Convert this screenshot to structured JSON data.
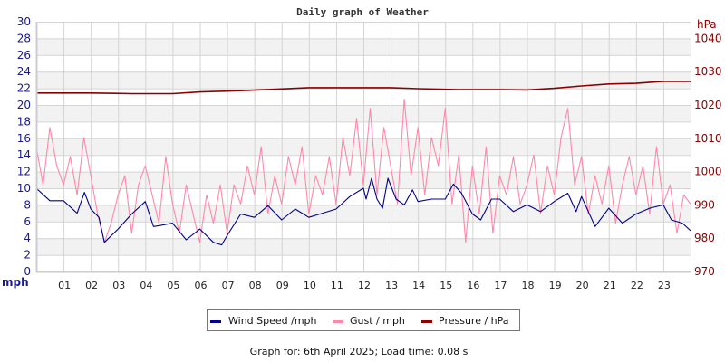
{
  "chart_data": {
    "type": "line",
    "title": "Daily graph of Weather",
    "footer": "Graph for: 6th April 2025; Load time: 0.08 s",
    "x_ticks": [
      "01",
      "02",
      "03",
      "04",
      "05",
      "06",
      "07",
      "08",
      "09",
      "10",
      "11",
      "12",
      "13",
      "14",
      "15",
      "16",
      "17",
      "18",
      "19",
      "20",
      "21",
      "22",
      "23"
    ],
    "xlim": [
      0,
      24
    ],
    "left_axis": {
      "label": "mph",
      "ylim": [
        0,
        30
      ],
      "ticks": [
        "0",
        "2",
        "4",
        "6",
        "8",
        "10",
        "12",
        "14",
        "16",
        "18",
        "20",
        "22",
        "24",
        "26",
        "28",
        "30"
      ]
    },
    "right_axis": {
      "label": "hPa",
      "ylim": [
        970,
        1045
      ],
      "ticks": [
        "970",
        "980",
        "990",
        "1000",
        "1010",
        "1020",
        "1030",
        "1040"
      ]
    },
    "grid": true,
    "legend_position": "bottom",
    "series": [
      {
        "name": "Wind Speed /mph",
        "axis": "left",
        "color": "#00008b",
        "x": [
          0,
          0.5,
          1,
          1.5,
          1.77,
          2,
          2.3,
          2.5,
          3,
          3.5,
          4,
          4.3,
          4.5,
          5,
          5.5,
          6,
          6.5,
          6.8,
          7,
          7.5,
          8,
          8.5,
          9,
          9.5,
          10,
          10.5,
          11,
          11.5,
          12,
          12.1,
          12.3,
          12.5,
          12.7,
          12.9,
          13.2,
          13.5,
          13.8,
          14,
          14.5,
          15,
          15.3,
          15.6,
          16,
          16.3,
          16.7,
          17,
          17.5,
          18,
          18.5,
          19,
          19.5,
          19.8,
          20,
          20.5,
          21,
          21.5,
          22,
          22.5,
          23,
          23.3,
          23.7,
          24
        ],
        "y": [
          10,
          8.5,
          8.5,
          7,
          9.5,
          7.5,
          6.5,
          3.5,
          5.1,
          6.9,
          8.4,
          5.4,
          5.5,
          5.8,
          3.8,
          5.1,
          3.5,
          3.2,
          4.3,
          6.9,
          6.5,
          7.9,
          6.2,
          7.5,
          6.5,
          7.0,
          7.5,
          9,
          10,
          8.7,
          11.2,
          8.7,
          7.6,
          11.2,
          8.7,
          8.0,
          9.8,
          8.4,
          8.7,
          8.7,
          10.5,
          9.4,
          6.9,
          6.2,
          8.7,
          8.7,
          7.2,
          8.0,
          7.2,
          8.4,
          9.4,
          7.2,
          9,
          5.4,
          7.6,
          5.8,
          6.9,
          7.6,
          8.0,
          6.2,
          5.8,
          4.9
        ]
      },
      {
        "name": "Gust / mph",
        "axis": "left",
        "color": "#ff88aa",
        "interval_hours": 0.25,
        "y": [
          15,
          10.4,
          17.3,
          12.7,
          10.4,
          13.8,
          9.2,
          16.1,
          11.5,
          6.9,
          3.5,
          5.8,
          9.2,
          11.5,
          4.6,
          10.4,
          12.7,
          9.2,
          5.8,
          13.8,
          8.1,
          4.6,
          10.4,
          6.9,
          3.5,
          9.2,
          5.8,
          10.4,
          4.6,
          10.4,
          8.1,
          12.7,
          9.2,
          15,
          6.9,
          11.5,
          8.1,
          13.8,
          10.4,
          15,
          6.9,
          11.5,
          9.2,
          13.8,
          8.1,
          16.1,
          11.5,
          18.4,
          10.4,
          19.6,
          9.2,
          17.3,
          12.7,
          8.1,
          20.7,
          11.5,
          17.3,
          9.2,
          16.1,
          12.7,
          19.6,
          8.1,
          14,
          3.5,
          12.7,
          6.9,
          15,
          4.6,
          11.5,
          9.2,
          13.8,
          8.1,
          10.4,
          14,
          7,
          12.7,
          9.2,
          16.1,
          19.6,
          10.4,
          13.8,
          6.9,
          11.5,
          8.1,
          12.7,
          5.8,
          10.4,
          13.8,
          9.2,
          12.7,
          6.9,
          15,
          8.1,
          10.4,
          4.6,
          9.2,
          8.1
        ]
      },
      {
        "name": "Pressure / hPa",
        "axis": "right",
        "color": "#8b0000",
        "x": [
          0,
          2,
          3.5,
          5,
          6,
          7.5,
          9,
          10,
          11,
          12,
          13,
          14,
          15.5,
          17,
          18,
          19,
          20,
          21,
          22,
          23,
          24
        ],
        "y": [
          1023.6,
          1023.6,
          1023.4,
          1023.4,
          1023.9,
          1024.3,
          1024.8,
          1025.2,
          1025.2,
          1025.2,
          1025.2,
          1024.9,
          1024.6,
          1024.6,
          1024.5,
          1025.0,
          1025.7,
          1026.3,
          1026.5,
          1027.1,
          1027.1
        ]
      }
    ]
  }
}
